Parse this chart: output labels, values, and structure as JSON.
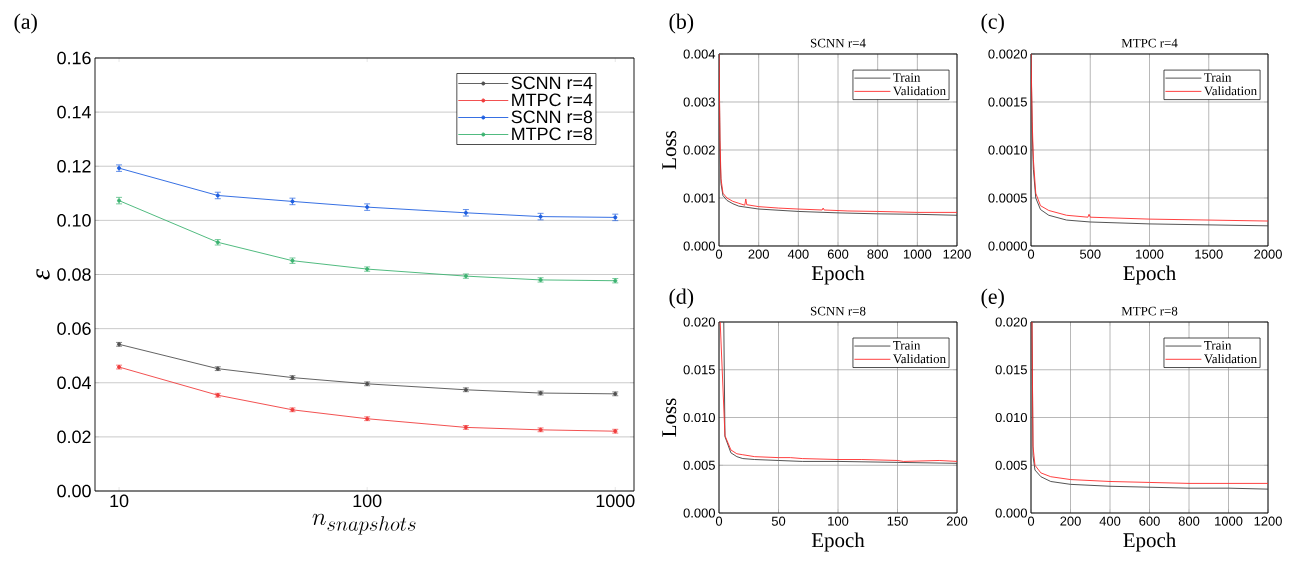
{
  "chart_data": [
    {
      "type": "line",
      "annotations": [
        "(a)"
      ],
      "xlabel": "n_{snapshots}",
      "ylabel": "ε",
      "log": "x",
      "grid": "y",
      "legend": "top right",
      "marker": "circle",
      "line_style": "solid",
      "x": [
        10,
        25,
        50,
        100,
        250,
        500,
        1000
      ],
      "xlim": [
        8,
        1190
      ],
      "xticks": [
        10,
        100,
        1000
      ],
      "ylim": [
        0,
        0.16
      ],
      "yticks": [
        {
          "value": 0,
          "label": "0.00"
        },
        {
          "value": 0.02,
          "label": "0.02"
        },
        {
          "value": 0.04,
          "label": "0.04"
        },
        {
          "value": 0.06,
          "label": "0.06"
        },
        {
          "value": 0.08,
          "label": "0.08"
        },
        {
          "value": 0.1,
          "label": "0.10"
        },
        {
          "value": 0.12,
          "label": "0.12"
        },
        {
          "value": 0.14,
          "label": "0.14"
        },
        {
          "value": 0.16,
          "label": "0.16"
        }
      ],
      "series": [
        {
          "name": "SCNN r=4",
          "color": "#505050",
          "values": [
            0.0542,
            0.0452,
            0.0419,
            0.0396,
            0.0374,
            0.0362,
            0.0359
          ],
          "errors": [
            0.0007,
            0.0007,
            0.0007,
            0.0007,
            0.0007,
            0.0007,
            0.0007
          ]
        },
        {
          "name": "MTPC r=4",
          "color": "#f03c3c",
          "values": [
            0.0458,
            0.0354,
            0.03,
            0.0267,
            0.0235,
            0.0226,
            0.0221
          ],
          "errors": [
            0.0007,
            0.0007,
            0.0007,
            0.0007,
            0.0007,
            0.0007,
            0.0007
          ]
        },
        {
          "name": "SCNN r=8",
          "color": "#1f5fe0",
          "values": [
            0.1193,
            0.1092,
            0.107,
            0.1049,
            0.1028,
            0.1014,
            0.1011
          ],
          "errors": [
            0.0012,
            0.0012,
            0.0012,
            0.0012,
            0.0012,
            0.0012,
            0.0012
          ]
        },
        {
          "name": "MTPC r=8",
          "color": "#3cb371",
          "values": [
            0.1073,
            0.0919,
            0.0851,
            0.082,
            0.0794,
            0.078,
            0.0777
          ],
          "errors": [
            0.0012,
            0.001,
            0.001,
            0.0008,
            0.0008,
            0.0008,
            0.0008
          ]
        }
      ]
    },
    {
      "type": "line",
      "title": "SCNN r=4",
      "annotations": [
        "(b)"
      ],
      "xlabel": "Epoch",
      "ylabel": "Loss",
      "grid": true,
      "legend": "top right",
      "line_style": "solid",
      "xlim": [
        0,
        1200
      ],
      "xticks": [
        0,
        200,
        400,
        600,
        800,
        1000,
        1200
      ],
      "ylim": [
        0,
        0.004
      ],
      "yticks": [
        {
          "value": 0,
          "label": "0.000"
        },
        {
          "value": 0.001,
          "label": "0.001"
        },
        {
          "value": 0.002,
          "label": "0.002"
        },
        {
          "value": 0.003,
          "label": "0.003"
        },
        {
          "value": 0.004,
          "label": "0.004"
        }
      ],
      "series": [
        {
          "name": "Train",
          "color": "#404040",
          "x": [
            0,
            5,
            10,
            20,
            40,
            70,
            100,
            200,
            400,
            600,
            800,
            1000,
            1200
          ],
          "values": [
            0.004,
            0.002,
            0.0013,
            0.00105,
            0.00095,
            0.00088,
            0.00083,
            0.00077,
            0.00072,
            0.00069,
            0.00067,
            0.00066,
            0.00064
          ]
        },
        {
          "name": "Validation",
          "color": "#ff2a2a",
          "x": [
            0,
            5,
            10,
            20,
            40,
            70,
            100,
            130,
            135,
            140,
            200,
            300,
            400,
            520,
            525,
            530,
            650,
            800,
            1000,
            1200
          ],
          "values": [
            0.004,
            0.0022,
            0.0014,
            0.0011,
            0.001,
            0.00093,
            0.00089,
            0.00085,
            0.00098,
            0.00086,
            0.00082,
            0.00079,
            0.00077,
            0.00075,
            0.00079,
            0.00075,
            0.00073,
            0.00072,
            0.0007,
            0.0007
          ]
        }
      ]
    },
    {
      "type": "line",
      "title": "MTPC r=4",
      "annotations": [
        "(c)"
      ],
      "xlabel": "Epoch",
      "grid": true,
      "legend": "top right",
      "line_style": "solid",
      "xlim": [
        0,
        2000
      ],
      "xticks": [
        0,
        500,
        1000,
        1500,
        2000
      ],
      "ylim": [
        0,
        0.002
      ],
      "yticks": [
        {
          "value": 0,
          "label": "0.0000"
        },
        {
          "value": 0.0005,
          "label": "0.0005"
        },
        {
          "value": 0.001,
          "label": "0.0010"
        },
        {
          "value": 0.0015,
          "label": "0.0015"
        },
        {
          "value": 0.002,
          "label": "0.0020"
        }
      ],
      "series": [
        {
          "name": "Train",
          "color": "#404040",
          "x": [
            0,
            10,
            20,
            40,
            80,
            150,
            300,
            500,
            1000,
            1500,
            2000
          ],
          "values": [
            0.002,
            0.0012,
            0.0008,
            0.0005,
            0.00038,
            0.00032,
            0.00027,
            0.00025,
            0.00023,
            0.00022,
            0.00021
          ]
        },
        {
          "name": "Validation",
          "color": "#ff2a2a",
          "x": [
            0,
            10,
            20,
            40,
            80,
            150,
            300,
            480,
            490,
            500,
            1000,
            1500,
            2000
          ],
          "values": [
            0.002,
            0.0013,
            0.0009,
            0.00055,
            0.00042,
            0.00037,
            0.00032,
            0.0003,
            0.00033,
            0.0003,
            0.00028,
            0.00027,
            0.00026
          ]
        }
      ]
    },
    {
      "type": "line",
      "title": "SCNN r=8",
      "annotations": [
        "(d)"
      ],
      "xlabel": "Epoch",
      "ylabel": "Loss",
      "grid": true,
      "legend": "top right",
      "line_style": "solid",
      "xlim": [
        0,
        200
      ],
      "xticks": [
        0,
        50,
        100,
        150,
        200
      ],
      "ylim": [
        0,
        0.02
      ],
      "yticks": [
        {
          "value": 0,
          "label": "0.000"
        },
        {
          "value": 0.005,
          "label": "0.005"
        },
        {
          "value": 0.01,
          "label": "0.010"
        },
        {
          "value": 0.015,
          "label": "0.015"
        },
        {
          "value": 0.02,
          "label": "0.020"
        }
      ],
      "series": [
        {
          "name": "Train",
          "color": "#404040",
          "x": [
            4,
            5,
            10,
            15,
            20,
            30,
            50,
            70,
            100,
            150,
            200
          ],
          "values": [
            0.02,
            0.008,
            0.0063,
            0.0059,
            0.0057,
            0.0056,
            0.0055,
            0.0054,
            0.0054,
            0.0053,
            0.0052
          ]
        },
        {
          "name": "Validation",
          "color": "#ff2a2a",
          "x": [
            1,
            5,
            10,
            15,
            20,
            30,
            50,
            60,
            70,
            100,
            120,
            150,
            155,
            185,
            200
          ],
          "values": [
            0.02,
            0.0081,
            0.0066,
            0.0062,
            0.0061,
            0.0059,
            0.0058,
            0.0058,
            0.0057,
            0.0056,
            0.0056,
            0.0055,
            0.0054,
            0.0055,
            0.0054
          ]
        }
      ]
    },
    {
      "type": "line",
      "title": "MTPC r=8",
      "annotations": [
        "(e)"
      ],
      "xlabel": "Epoch",
      "grid": true,
      "legend": "top right",
      "line_style": "solid",
      "xlim": [
        0,
        1200
      ],
      "xticks": [
        0,
        200,
        400,
        600,
        800,
        1000,
        1200
      ],
      "ylim": [
        0,
        0.02
      ],
      "yticks": [
        {
          "value": 0,
          "label": "0.000"
        },
        {
          "value": 0.005,
          "label": "0.005"
        },
        {
          "value": 0.01,
          "label": "0.010"
        },
        {
          "value": 0.015,
          "label": "0.015"
        },
        {
          "value": 0.02,
          "label": "0.020"
        }
      ],
      "series": [
        {
          "name": "Train",
          "color": "#404040",
          "x": [
            5,
            10,
            20,
            50,
            100,
            200,
            400,
            600,
            800,
            1000,
            1200
          ],
          "values": [
            0.02,
            0.006,
            0.0045,
            0.0038,
            0.0033,
            0.003,
            0.0028,
            0.0027,
            0.0026,
            0.0026,
            0.0025
          ]
        },
        {
          "name": "Validation",
          "color": "#ff2a2a",
          "x": [
            5,
            10,
            20,
            50,
            100,
            200,
            400,
            600,
            800,
            1000,
            1200
          ],
          "values": [
            0.02,
            0.007,
            0.005,
            0.0042,
            0.0038,
            0.0035,
            0.0033,
            0.0032,
            0.0031,
            0.0031,
            0.0031
          ]
        }
      ]
    }
  ]
}
